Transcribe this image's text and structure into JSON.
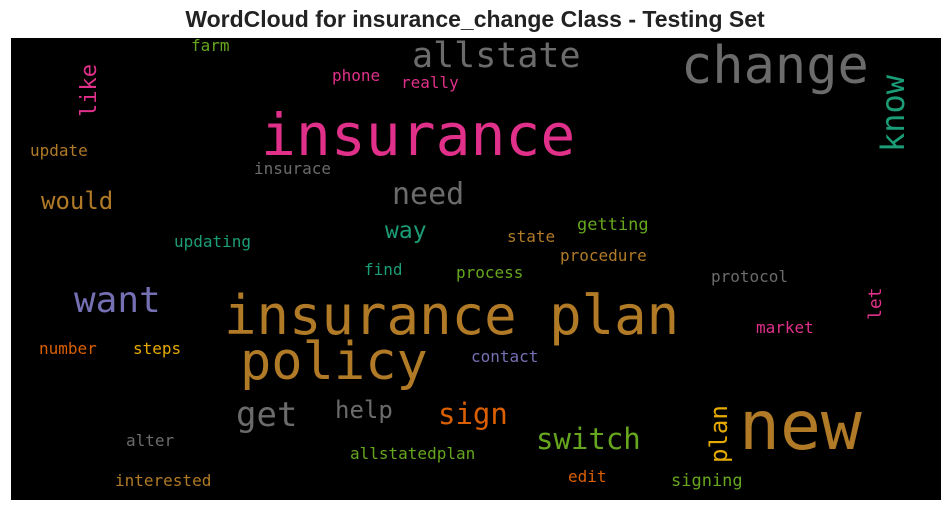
{
  "chart_data": {
    "type": "wordcloud",
    "title": "WordCloud for insurance_change Class - Testing Set",
    "background": "#000000",
    "words": [
      {
        "text": "insurance plan",
        "color": "#b07a26",
        "orientation": "horizontal"
      },
      {
        "text": "insurance",
        "color": "#e0308a",
        "orientation": "horizontal"
      },
      {
        "text": "change",
        "color": "#6b6b6b",
        "orientation": "horizontal"
      },
      {
        "text": "new",
        "color": "#b07a26",
        "orientation": "horizontal"
      },
      {
        "text": "policy",
        "color": "#b07a26",
        "orientation": "horizontal"
      },
      {
        "text": "want",
        "color": "#7570b3",
        "orientation": "horizontal"
      },
      {
        "text": "allstate",
        "color": "#6b6b6b",
        "orientation": "horizontal"
      },
      {
        "text": "know",
        "color": "#1b9e77",
        "orientation": "vertical"
      },
      {
        "text": "get",
        "color": "#6b6b6b",
        "orientation": "horizontal"
      },
      {
        "text": "need",
        "color": "#6b6b6b",
        "orientation": "horizontal"
      },
      {
        "text": "switch",
        "color": "#66a61e",
        "orientation": "horizontal"
      },
      {
        "text": "sign",
        "color": "#d95f02",
        "orientation": "horizontal"
      },
      {
        "text": "plan",
        "color": "#e6ab02",
        "orientation": "vertical"
      },
      {
        "text": "would",
        "color": "#b07a26",
        "orientation": "horizontal"
      },
      {
        "text": "like",
        "color": "#e0308a",
        "orientation": "vertical"
      },
      {
        "text": "help",
        "color": "#6b6b6b",
        "orientation": "horizontal"
      },
      {
        "text": "way",
        "color": "#1b9e77",
        "orientation": "horizontal"
      },
      {
        "text": "farm",
        "color": "#66a61e",
        "orientation": "horizontal"
      },
      {
        "text": "phone",
        "color": "#e0308a",
        "orientation": "horizontal"
      },
      {
        "text": "really",
        "color": "#e0308a",
        "orientation": "horizontal"
      },
      {
        "text": "update",
        "color": "#b07a26",
        "orientation": "horizontal"
      },
      {
        "text": "insurace",
        "color": "#6b6b6b",
        "orientation": "horizontal"
      },
      {
        "text": "updating",
        "color": "#1b9e77",
        "orientation": "horizontal"
      },
      {
        "text": "getting",
        "color": "#66a61e",
        "orientation": "horizontal"
      },
      {
        "text": "state",
        "color": "#b07a26",
        "orientation": "horizontal"
      },
      {
        "text": "procedure",
        "color": "#b07a26",
        "orientation": "horizontal"
      },
      {
        "text": "find",
        "color": "#1b9e77",
        "orientation": "horizontal"
      },
      {
        "text": "process",
        "color": "#66a61e",
        "orientation": "horizontal"
      },
      {
        "text": "protocol",
        "color": "#6b6b6b",
        "orientation": "horizontal"
      },
      {
        "text": "let",
        "color": "#e0308a",
        "orientation": "vertical"
      },
      {
        "text": "market",
        "color": "#e0308a",
        "orientation": "horizontal"
      },
      {
        "text": "number",
        "color": "#d95f02",
        "orientation": "horizontal"
      },
      {
        "text": "steps",
        "color": "#e6ab02",
        "orientation": "horizontal"
      },
      {
        "text": "contact",
        "color": "#7570b3",
        "orientation": "horizontal"
      },
      {
        "text": "alter",
        "color": "#6b6b6b",
        "orientation": "horizontal"
      },
      {
        "text": "allstatedplan",
        "color": "#66a61e",
        "orientation": "horizontal"
      },
      {
        "text": "edit",
        "color": "#d95f02",
        "orientation": "horizontal"
      },
      {
        "text": "interested",
        "color": "#b07a26",
        "orientation": "horizontal"
      },
      {
        "text": "signing",
        "color": "#66a61e",
        "orientation": "horizontal"
      }
    ]
  }
}
